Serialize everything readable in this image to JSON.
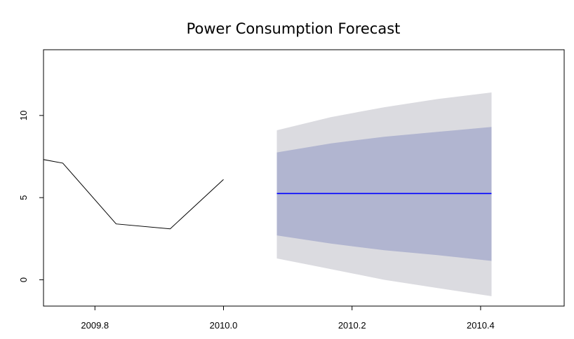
{
  "chart_data": {
    "type": "line",
    "title": "Power Consumption Forecast",
    "xlabel": "",
    "ylabel": "",
    "xlim": [
      2009.72,
      2010.53
    ],
    "ylim": [
      -1.6,
      14.0
    ],
    "x_ticks": [
      2009.8,
      2010.0,
      2010.2,
      2010.4
    ],
    "x_tick_labels": [
      "2009.8",
      "2010.0",
      "2010.2",
      "2010.4"
    ],
    "y_ticks": [
      0,
      5,
      10
    ],
    "y_tick_labels": [
      "0",
      "5",
      "10"
    ],
    "grid": false,
    "series": [
      {
        "role": "observed",
        "x": [
          2009.667,
          2009.75,
          2009.833,
          2009.917,
          2010.0
        ],
        "y": [
          7.7,
          7.1,
          3.4,
          3.1,
          6.1
        ],
        "color": "#000000"
      },
      {
        "role": "forecast",
        "x": [
          2010.083,
          2010.167,
          2010.25,
          2010.333,
          2010.417
        ],
        "y": [
          5.25,
          5.25,
          5.25,
          5.25,
          5.25
        ],
        "color": "#0000ff"
      }
    ],
    "interval_80": {
      "x": [
        2010.083,
        2010.167,
        2010.25,
        2010.333,
        2010.417
      ],
      "lower": [
        2.7,
        2.2,
        1.8,
        1.5,
        1.15
      ],
      "upper": [
        7.75,
        8.3,
        8.7,
        9.0,
        9.3
      ],
      "color": "#b1b5d0"
    },
    "interval_95": {
      "x": [
        2010.083,
        2010.167,
        2010.25,
        2010.333,
        2010.417
      ],
      "lower": [
        1.3,
        0.65,
        0.0,
        -0.5,
        -1.0
      ],
      "upper": [
        9.1,
        9.9,
        10.5,
        11.0,
        11.4
      ],
      "color": "#dbdbe0"
    }
  }
}
